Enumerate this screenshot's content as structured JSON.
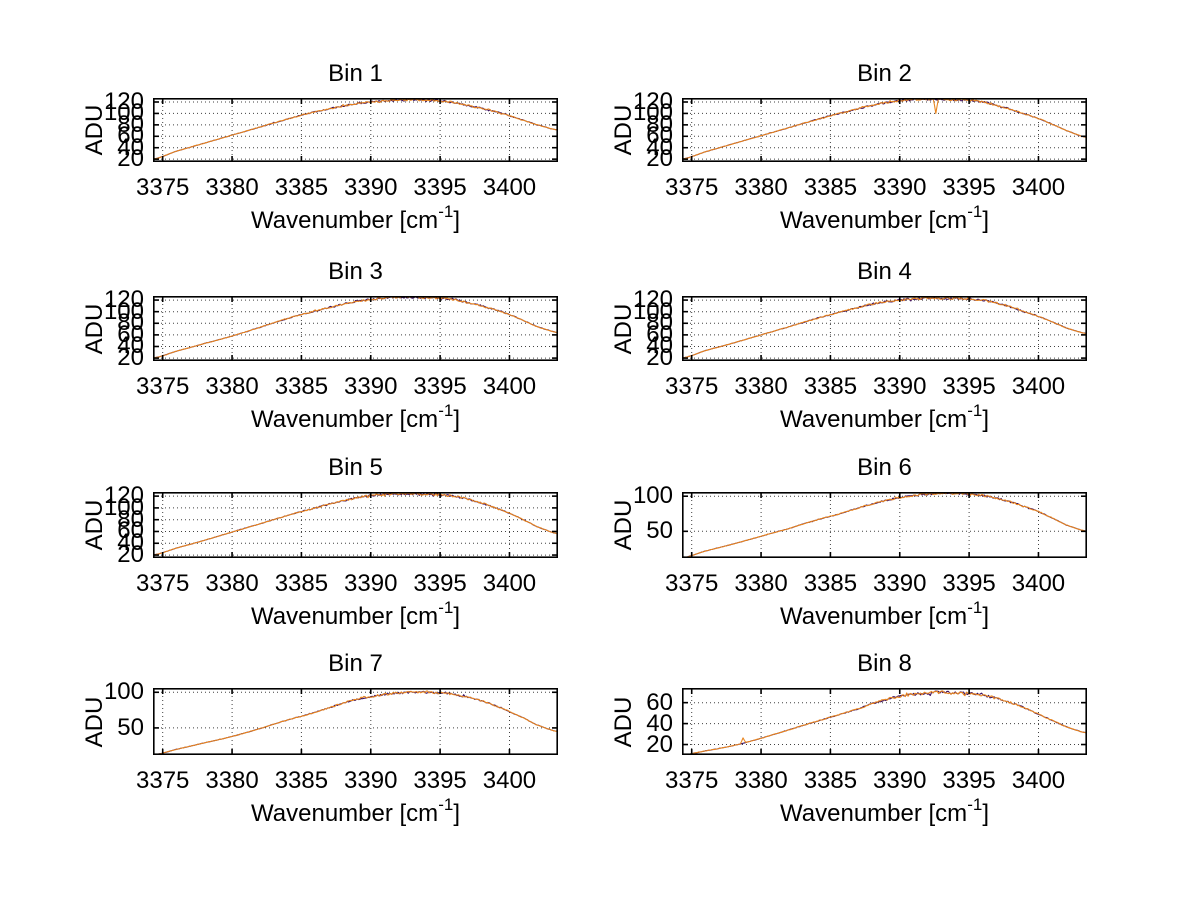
{
  "figure": {
    "background": "#ffffff",
    "axis_color": "#000000",
    "grid_color": "#404040",
    "text_color": "#000000",
    "series_colors": {
      "trace_dark": "#3d1060",
      "trace_orange": "#e8851f"
    }
  },
  "chart_data": [
    {
      "type": "line",
      "title": "Bin 1",
      "ylabel": "ADU",
      "xlabel": "Wavenumber [cm^-1]",
      "xlabel_parts": {
        "main": "Wavenumber [cm",
        "sup": "-1",
        "end": "]"
      },
      "xlim": [
        3374.3,
        3403.5
      ],
      "ylim": [
        15,
        127
      ],
      "xticks": [
        3375,
        3380,
        3385,
        3390,
        3395,
        3400
      ],
      "yticks": [
        20,
        40,
        60,
        80,
        100,
        120
      ],
      "grid": true,
      "series": [
        {
          "name": "trace-dark",
          "color": "#3d1060"
        },
        {
          "name": "trace-orange",
          "color": "#e8851f"
        }
      ],
      "envelope": {
        "x": [
          3374.3,
          3376,
          3378,
          3380,
          3382,
          3384,
          3385.5,
          3387,
          3388,
          3389,
          3390,
          3391,
          3392,
          3393,
          3394,
          3395,
          3396,
          3397,
          3398,
          3399,
          3400,
          3401,
          3402,
          3403.5
        ],
        "adu": [
          20,
          34,
          48,
          62,
          76,
          90,
          100,
          108,
          113,
          117,
          120,
          122,
          123,
          124,
          123,
          122,
          119,
          114,
          109,
          103,
          96,
          88,
          80,
          71
        ]
      },
      "noise_adu": 1.9,
      "spikes": []
    },
    {
      "type": "line",
      "title": "Bin 2",
      "ylabel": "ADU",
      "xlabel": "Wavenumber [cm^-1]",
      "xlabel_parts": {
        "main": "Wavenumber [cm",
        "sup": "-1",
        "end": "]"
      },
      "xlim": [
        3374.3,
        3403.5
      ],
      "ylim": [
        15,
        127
      ],
      "xticks": [
        3375,
        3380,
        3385,
        3390,
        3395,
        3400
      ],
      "yticks": [
        20,
        40,
        60,
        80,
        100,
        120
      ],
      "grid": true,
      "series": [
        {
          "name": "trace-dark",
          "color": "#3d1060"
        },
        {
          "name": "trace-orange",
          "color": "#e8851f"
        }
      ],
      "envelope": {
        "x": [
          3374.3,
          3376,
          3378,
          3380,
          3382,
          3384,
          3385.5,
          3387,
          3388,
          3389,
          3390,
          3391,
          3392,
          3393,
          3394,
          3395,
          3396,
          3397,
          3398,
          3399,
          3400,
          3401,
          3402,
          3403.5
        ],
        "adu": [
          20,
          33,
          47,
          61,
          75,
          89,
          99,
          108,
          114,
          119,
          122,
          124,
          125,
          125,
          124,
          123,
          120,
          114,
          107,
          99,
          91,
          81,
          70,
          58
        ]
      },
      "noise_adu": 1.9,
      "spikes": [
        {
          "x": 3392.6,
          "dy": -26,
          "series": 1
        }
      ]
    },
    {
      "type": "line",
      "title": "Bin 3",
      "ylabel": "ADU",
      "xlabel": "Wavenumber [cm^-1]",
      "xlabel_parts": {
        "main": "Wavenumber [cm",
        "sup": "-1",
        "end": "]"
      },
      "xlim": [
        3374.3,
        3403.5
      ],
      "ylim": [
        15,
        127
      ],
      "xticks": [
        3375,
        3380,
        3385,
        3390,
        3395,
        3400
      ],
      "yticks": [
        20,
        40,
        60,
        80,
        100,
        120
      ],
      "grid": true,
      "series": [
        {
          "name": "trace-dark",
          "color": "#3d1060"
        },
        {
          "name": "trace-orange",
          "color": "#e8851f"
        }
      ],
      "envelope": {
        "x": [
          3374.3,
          3376,
          3378,
          3380,
          3382,
          3384,
          3385.5,
          3387,
          3388,
          3389,
          3390,
          3391,
          3392,
          3393,
          3394,
          3395,
          3396,
          3397,
          3398,
          3399,
          3400,
          3401,
          3402,
          3403.5
        ],
        "adu": [
          20,
          32,
          45,
          58,
          73,
          88,
          98,
          107,
          113,
          118,
          121,
          124,
          125,
          125,
          124,
          123,
          121,
          116,
          110,
          103,
          95,
          85,
          74,
          64
        ]
      },
      "noise_adu": 1.9,
      "spikes": []
    },
    {
      "type": "line",
      "title": "Bin 4",
      "ylabel": "ADU",
      "xlabel": "Wavenumber [cm^-1]",
      "xlabel_parts": {
        "main": "Wavenumber [cm",
        "sup": "-1",
        "end": "]"
      },
      "xlim": [
        3374.3,
        3403.5
      ],
      "ylim": [
        15,
        127
      ],
      "xticks": [
        3375,
        3380,
        3385,
        3390,
        3395,
        3400
      ],
      "yticks": [
        20,
        40,
        60,
        80,
        100,
        120
      ],
      "grid": true,
      "series": [
        {
          "name": "trace-dark",
          "color": "#3d1060"
        },
        {
          "name": "trace-orange",
          "color": "#e8851f"
        }
      ],
      "envelope": {
        "x": [
          3374.3,
          3376,
          3378,
          3380,
          3382,
          3384,
          3385.5,
          3387,
          3388,
          3389,
          3390,
          3391,
          3392,
          3393,
          3394,
          3395,
          3396,
          3397,
          3398,
          3399,
          3400,
          3401,
          3402,
          3403.5
        ],
        "adu": [
          20,
          33,
          46,
          60,
          74,
          88,
          98,
          107,
          113,
          117,
          120,
          122,
          123,
          123,
          123,
          122,
          120,
          115,
          108,
          100,
          92,
          82,
          72,
          62
        ]
      },
      "noise_adu": 1.9,
      "spikes": []
    },
    {
      "type": "line",
      "title": "Bin 5",
      "ylabel": "ADU",
      "xlabel": "Wavenumber [cm^-1]",
      "xlabel_parts": {
        "main": "Wavenumber [cm",
        "sup": "-1",
        "end": "]"
      },
      "xlim": [
        3374.3,
        3403.5
      ],
      "ylim": [
        15,
        127
      ],
      "xticks": [
        3375,
        3380,
        3385,
        3390,
        3395,
        3400
      ],
      "yticks": [
        20,
        40,
        60,
        80,
        100,
        120
      ],
      "grid": true,
      "series": [
        {
          "name": "trace-dark",
          "color": "#3d1060"
        },
        {
          "name": "trace-orange",
          "color": "#e8851f"
        }
      ],
      "envelope": {
        "x": [
          3374.3,
          3376,
          3378,
          3380,
          3382,
          3384,
          3385.5,
          3387,
          3388,
          3389,
          3390,
          3391,
          3392,
          3393,
          3394,
          3395,
          3396,
          3397,
          3398,
          3399,
          3400,
          3401,
          3402,
          3403.5
        ],
        "adu": [
          20,
          32,
          45,
          59,
          73,
          87,
          97,
          106,
          112,
          117,
          121,
          123,
          124,
          124,
          123,
          122,
          120,
          115,
          108,
          100,
          91,
          80,
          68,
          56
        ]
      },
      "noise_adu": 1.9,
      "spikes": []
    },
    {
      "type": "line",
      "title": "Bin 6",
      "ylabel": "ADU",
      "xlabel": "Wavenumber [cm^-1]",
      "xlabel_parts": {
        "main": "Wavenumber [cm",
        "sup": "-1",
        "end": "]"
      },
      "xlim": [
        3374.3,
        3403.5
      ],
      "ylim": [
        12,
        106
      ],
      "xticks": [
        3375,
        3380,
        3385,
        3390,
        3395,
        3400
      ],
      "yticks": [
        50,
        100
      ],
      "grid": true,
      "series": [
        {
          "name": "trace-dark",
          "color": "#3d1060"
        },
        {
          "name": "trace-orange",
          "color": "#e8851f"
        }
      ],
      "envelope": {
        "x": [
          3374.3,
          3376,
          3378,
          3380,
          3382,
          3384,
          3385.5,
          3387,
          3388,
          3389,
          3390,
          3391,
          3392,
          3393,
          3394,
          3395,
          3396,
          3397,
          3398,
          3399,
          3400,
          3401,
          3402,
          3403.5
        ],
        "adu": [
          12,
          22,
          32,
          43,
          54,
          66,
          74,
          83,
          89,
          94,
          98,
          101,
          103,
          104,
          104,
          103,
          101,
          97,
          92,
          85,
          78,
          69,
          59,
          50
        ]
      },
      "noise_adu": 1.5,
      "spikes": []
    },
    {
      "type": "line",
      "title": "Bin 7",
      "ylabel": "ADU",
      "xlabel": "Wavenumber [cm^-1]",
      "xlabel_parts": {
        "main": "Wavenumber [cm",
        "sup": "-1",
        "end": "]"
      },
      "xlim": [
        3374.3,
        3403.5
      ],
      "ylim": [
        12,
        106
      ],
      "xticks": [
        3375,
        3380,
        3385,
        3390,
        3395,
        3400
      ],
      "yticks": [
        50,
        100
      ],
      "grid": true,
      "series": [
        {
          "name": "trace-dark",
          "color": "#3d1060"
        },
        {
          "name": "trace-orange",
          "color": "#e8851f"
        }
      ],
      "envelope": {
        "x": [
          3374.3,
          3376,
          3378,
          3380,
          3382,
          3384,
          3385.5,
          3387,
          3388,
          3389,
          3390,
          3391,
          3392,
          3393,
          3394,
          3395,
          3396,
          3397,
          3398,
          3399,
          3400,
          3401,
          3402,
          3403.5
        ],
        "adu": [
          12,
          20,
          29,
          38,
          49,
          61,
          69,
          78,
          85,
          90,
          94,
          97,
          99,
          100,
          100,
          99,
          97,
          93,
          88,
          81,
          73,
          64,
          54,
          45
        ]
      },
      "noise_adu": 1.5,
      "spikes": []
    },
    {
      "type": "line",
      "title": "Bin 8",
      "ylabel": "ADU",
      "xlabel": "Wavenumber [cm^-1]",
      "xlabel_parts": {
        "main": "Wavenumber [cm",
        "sup": "-1",
        "end": "]"
      },
      "xlim": [
        3374.3,
        3403.5
      ],
      "ylim": [
        10,
        74
      ],
      "xticks": [
        3375,
        3380,
        3385,
        3390,
        3395,
        3400
      ],
      "yticks": [
        20,
        40,
        60
      ],
      "grid": true,
      "series": [
        {
          "name": "trace-dark",
          "color": "#3d1060"
        },
        {
          "name": "trace-orange",
          "color": "#e8851f"
        }
      ],
      "envelope": {
        "x": [
          3374.3,
          3376,
          3378,
          3380,
          3382,
          3384,
          3385.5,
          3387,
          3388,
          3389,
          3390,
          3391,
          3392,
          3393,
          3394,
          3395,
          3396,
          3397,
          3398,
          3399,
          3400,
          3401,
          3402,
          3403.5
        ],
        "adu": [
          10,
          14,
          19,
          26,
          34,
          42,
          48,
          54,
          59,
          63,
          66,
          68,
          69,
          70,
          69,
          69,
          67,
          64,
          60,
          55,
          49,
          43,
          37,
          31
        ]
      },
      "noise_adu": 1.4,
      "spikes": [
        {
          "x": 3378.7,
          "dy": 5,
          "series": 1
        }
      ]
    }
  ]
}
